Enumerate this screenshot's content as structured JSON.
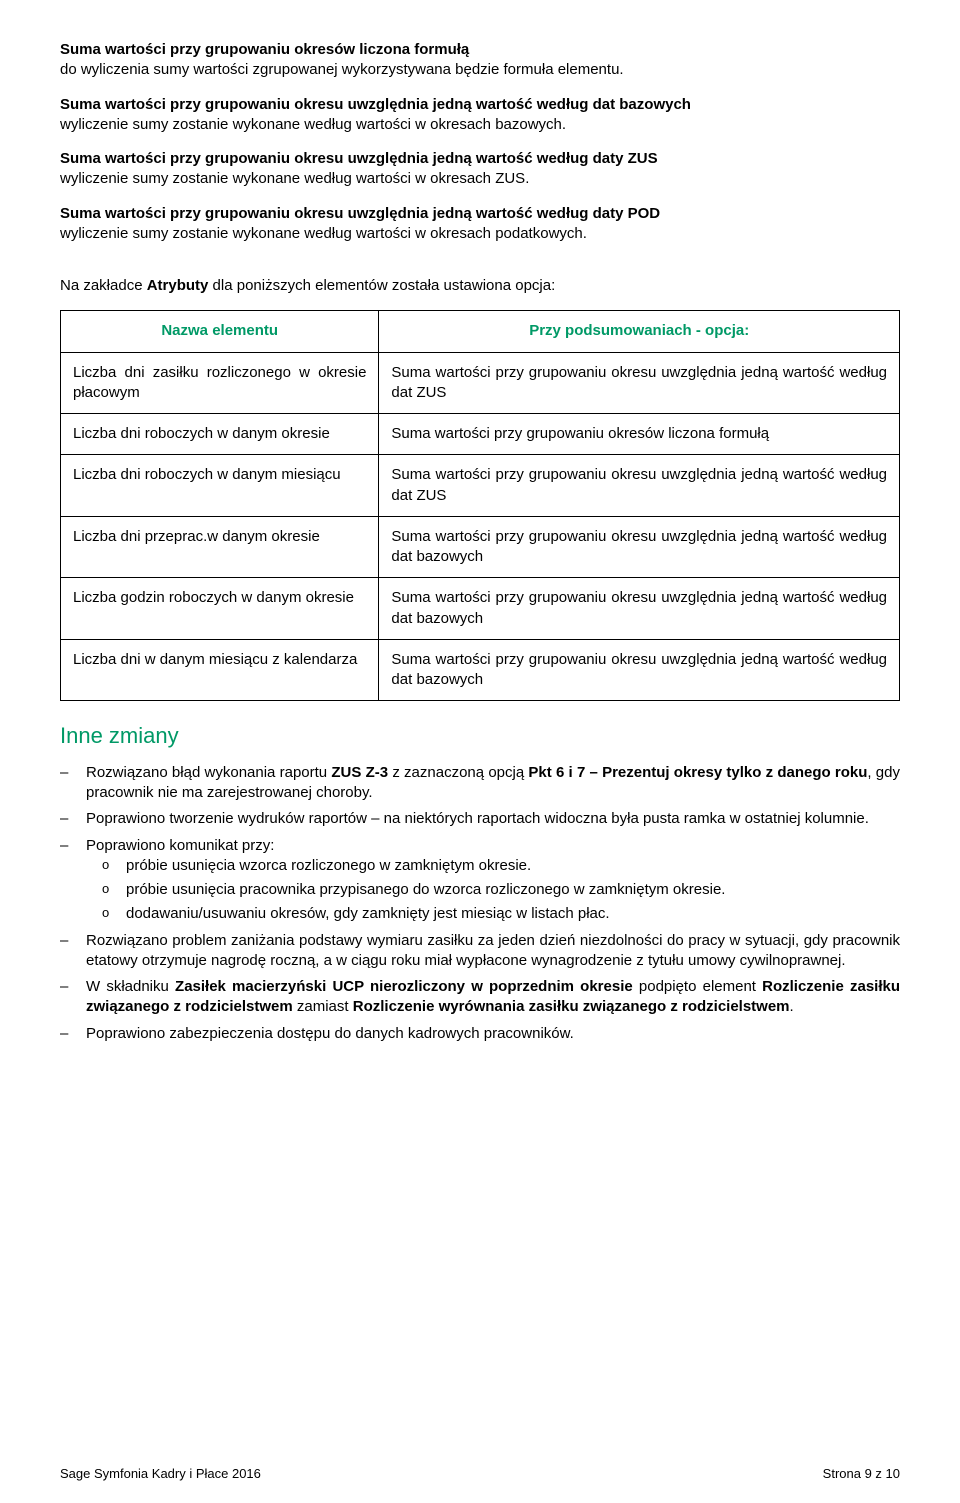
{
  "para1_bold": "Suma wartości przy grupowaniu okresów liczona formułą",
  "para1_rest": "do wyliczenia sumy wartości zgrupowanej wykorzystywana będzie formuła elementu.",
  "para2_bold": "Suma wartości przy grupowaniu okresu uwzględnia jedną wartość według dat bazowych",
  "para2_rest": "wyliczenie sumy zostanie wykonane według wartości w okresach bazowych.",
  "para3_bold": "Suma wartości przy grupowaniu okresu uwzględnia jedną wartość według daty ZUS",
  "para3_rest": "wyliczenie sumy zostanie wykonane według wartości w okresach ZUS.",
  "para4_bold": "Suma wartości przy grupowaniu okresu uwzględnia jedną wartość według daty POD",
  "para4_rest": "wyliczenie sumy zostanie wykonane według wartości w okresach podatkowych.",
  "intro_table_pre": "Na zakładce ",
  "intro_table_bold": "Atrybuty",
  "intro_table_post": " dla poniższych elementów została ustawiona opcja:",
  "table": {
    "header_left": "Nazwa elementu",
    "header_right": "Przy podsumowaniach - opcja:",
    "rows": [
      {
        "l": "Liczba dni zasiłku rozliczonego w okresie płacowym",
        "r": "Suma wartości przy grupowaniu okresu uwzględnia jedną wartość według dat ZUS"
      },
      {
        "l": "Liczba dni roboczych w danym okresie",
        "r": "Suma wartości przy grupowaniu okresów liczona formułą"
      },
      {
        "l": "Liczba dni roboczych w danym miesiącu",
        "r": "Suma wartości przy grupowaniu okresu uwzględnia jedną wartość według dat ZUS"
      },
      {
        "l": "Liczba dni przeprac.w danym okresie",
        "r": "Suma wartości przy grupowaniu okresu uwzględnia jedną wartość według dat bazowych"
      },
      {
        "l": "Liczba godzin roboczych w danym okresie",
        "r": "Suma wartości przy grupowaniu okresu uwzględnia jedną wartość według dat bazowych"
      },
      {
        "l": "Liczba dni w danym miesiącu z kalendarza",
        "r": "Suma wartości przy grupowaniu okresu uwzględnia jedną wartość według dat bazowych"
      }
    ]
  },
  "section_heading": "Inne zmiany",
  "b1_pre": "Rozwiązano błąd wykonania raportu ",
  "b1_b1": "ZUS Z-3",
  "b1_mid": " z zaznaczoną opcją ",
  "b1_b2": "Pkt 6 i 7 – Prezentuj okresy tylko z danego roku",
  "b1_post": ", gdy pracownik nie ma zarejestrowanej choroby.",
  "b2": "Poprawiono tworzenie wydruków raportów – na niektórych raportach widoczna była pusta ramka w ostatniej kolumnie.",
  "b3": "Poprawiono komunikat przy:",
  "b3a": "próbie usunięcia wzorca rozliczonego w zamkniętym okresie.",
  "b3b": "próbie usunięcia pracownika przypisanego do wzorca rozliczonego w zamkniętym okresie.",
  "b3c": "dodawaniu/usuwaniu okresów, gdy zamknięty jest miesiąc w listach płac.",
  "b4": "Rozwiązano problem zaniżania podstawy wymiaru zasiłku za jeden dzień niezdolności do pracy w sytuacji, gdy pracownik etatowy otrzymuje nagrodę roczną, a w ciągu roku miał wypłacone wynagrodzenie z tytułu umowy cywilnoprawnej.",
  "b5_pre": "W składniku ",
  "b5_b1": "Zasiłek macierzyński UCP nierozliczony w poprzednim okresie",
  "b5_mid1": " podpięto element ",
  "b5_b2": "Rozliczenie zasiłku związanego z rodzicielstwem",
  "b5_mid2": " zamiast ",
  "b5_b3": "Rozliczenie wyrównania zasiłku związanego z rodzicielstwem",
  "b5_post": ".",
  "b6": "Poprawiono zabezpieczenia dostępu do danych kadrowych pracowników.",
  "footer_left": "Sage Symfonia Kadry i Płace 2016",
  "footer_right": "Strona 9 z 10"
}
